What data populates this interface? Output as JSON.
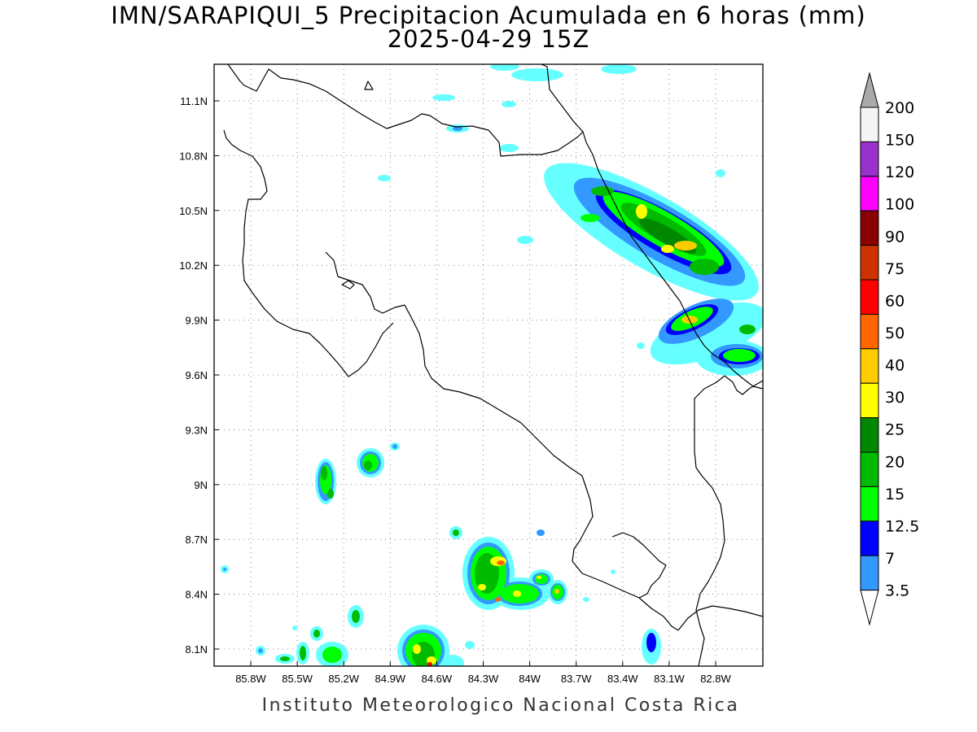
{
  "title": {
    "line1": "IMN/SARAPIQUI_5 Precipitacion Acumulada en 6 horas (mm)",
    "line2": "2025-04-29 15Z"
  },
  "footer": "Instituto Meteorologico Nacional Costa Rica",
  "map": {
    "lon_labels": [
      "85.8W",
      "85.5W",
      "85.2W",
      "84.9W",
      "84.6W",
      "84.3W",
      "84W",
      "83.7W",
      "83.4W",
      "83.1W",
      "82.8W"
    ],
    "lat_labels": [
      "11.1N",
      "10.8N",
      "10.5N",
      "10.2N",
      "9.9N",
      "9.6N",
      "9.3N",
      "9N",
      "8.7N",
      "8.4N",
      "8.1N"
    ],
    "grid": "dotted"
  },
  "colorbar": {
    "labels": [
      "200",
      "150",
      "120",
      "100",
      "90",
      "75",
      "60",
      "50",
      "40",
      "30",
      "25",
      "20",
      "15",
      "12.5",
      "7",
      "3.5"
    ],
    "colors": [
      "#aaaaaa",
      "#f5f5f5",
      "#9932cc",
      "#ff00ff",
      "#8b0000",
      "#cc3300",
      "#ff0000",
      "#ff6600",
      "#ffcc00",
      "#ffff00",
      "#008800",
      "#00bb00",
      "#00ff00",
      "#0000ff",
      "#3399ff",
      "#66ffff"
    ]
  }
}
